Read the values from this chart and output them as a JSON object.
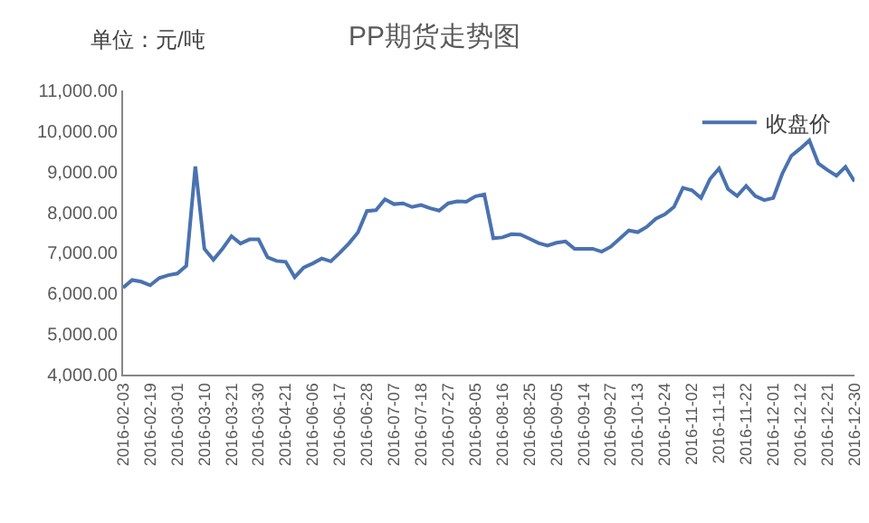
{
  "chart_data": {
    "type": "line",
    "title": "PP期货走势图",
    "annotations": [
      "单位：元/吨"
    ],
    "categories": [
      "2016-02-03",
      null,
      null,
      "2016-02-19",
      null,
      null,
      "2016-03-01",
      null,
      null,
      "2016-03-10",
      null,
      null,
      "2016-03-21",
      null,
      null,
      "2016-03-30",
      null,
      null,
      "2016-04-21",
      null,
      null,
      "2016-06-06",
      null,
      null,
      "2016-06-17",
      null,
      null,
      "2016-06-28",
      null,
      null,
      "2016-07-07",
      null,
      null,
      "2016-07-18",
      null,
      null,
      "2016-07-27",
      null,
      null,
      "2016-08-05",
      null,
      null,
      "2016-08-16",
      null,
      null,
      "2016-08-25",
      null,
      null,
      "2016-09-05",
      null,
      null,
      "2016-09-14",
      null,
      null,
      "2016-09-27",
      null,
      null,
      "2016-10-13",
      null,
      null,
      "2016-10-24",
      null,
      null,
      "2016-11-02",
      null,
      null,
      "2016-11-11",
      null,
      null,
      "2016-11-22",
      null,
      null,
      "2016-12-01",
      null,
      null,
      "2016-12-12",
      null,
      null,
      "2016-12-21",
      null,
      null,
      "2016-12-30"
    ],
    "series": [
      {
        "name": "收盘价",
        "color": "#4a72b0",
        "values": [
          6140,
          6330,
          6290,
          6200,
          6380,
          6450,
          6490,
          6680,
          9130,
          7100,
          6830,
          7100,
          7410,
          7230,
          7330,
          7330,
          6890,
          6800,
          6780,
          6400,
          6640,
          6740,
          6860,
          6790,
          7000,
          7230,
          7500,
          8030,
          8050,
          8320,
          8200,
          8220,
          8130,
          8180,
          8100,
          8040,
          8220,
          8270,
          8260,
          8390,
          8440,
          7360,
          7380,
          7460,
          7450,
          7350,
          7240,
          7180,
          7250,
          7280,
          7100,
          7100,
          7100,
          7030,
          7150,
          7350,
          7550,
          7510,
          7640,
          7840,
          7950,
          8130,
          8600,
          8540,
          8350,
          8820,
          9080,
          8570,
          8400,
          8650,
          8400,
          8300,
          8350,
          8950,
          9390,
          9570,
          9770,
          9200,
          9040,
          8900,
          9120,
          8760
        ]
      }
    ],
    "ylim": [
      4000,
      11000
    ],
    "yticks": [
      {
        "value": 4000,
        "label": "4,000.00"
      },
      {
        "value": 5000,
        "label": "5,000.00"
      },
      {
        "value": 6000,
        "label": "6,000.00"
      },
      {
        "value": 7000,
        "label": "7,000.00"
      },
      {
        "value": 8000,
        "label": "8,000.00"
      },
      {
        "value": 9000,
        "label": "9,000.00"
      },
      {
        "value": 10000,
        "label": "10,000.00"
      },
      {
        "value": 11000,
        "label": "11,000.00"
      }
    ],
    "grid": false,
    "legend": "top right",
    "marker": "none",
    "line_style": "solid"
  }
}
